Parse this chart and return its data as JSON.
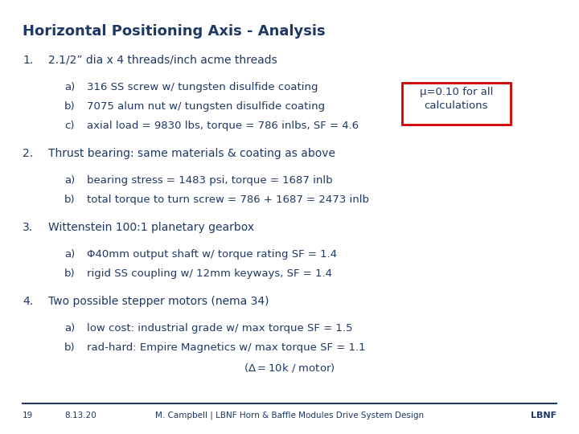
{
  "title": "Horizontal Positioning Axis - Analysis",
  "title_color": "#1F3864",
  "title_fontsize": 13,
  "background_color": "#FFFFFF",
  "body_color": "#1F3864",
  "body_fontsize": 10,
  "sub_fontsize": 9.5,
  "items": [
    {
      "num": "1.",
      "text": "2.1/2” dia x 4 threads/inch acme threads",
      "subitems": [
        {
          "label": "a)",
          "text": "316 SS screw w/ tungsten disulfide coating"
        },
        {
          "label": "b)",
          "text": "7075 alum nut w/ tungsten disulfide coating"
        },
        {
          "label": "c)",
          "text": "axial load = 9830 lbs, torque = 786 inlbs, SF = 4.6"
        }
      ]
    },
    {
      "num": "2.",
      "text": "Thrust bearing: same materials & coating as above",
      "subitems": [
        {
          "label": "a)",
          "text": "bearing stress = 1483 psi, torque = 1687 inlb"
        },
        {
          "label": "b)",
          "text": "total torque to turn screw = 786 + 1687 = 2473 inlb"
        }
      ]
    },
    {
      "num": "3.",
      "text": "Wittenstein 100:1 planetary gearbox",
      "subitems": [
        {
          "label": "a)",
          "text": "Φ40mm output shaft w/ torque rating SF = 1.4"
        },
        {
          "label": "b)",
          "text": "rigid SS coupling w/ 12mm keyways, SF = 1.4"
        }
      ]
    },
    {
      "num": "4.",
      "text": "Two possible stepper motors (nema 34)",
      "subitems": [
        {
          "label": "a)",
          "text": "low cost: industrial grade w/ max torque SF = 1.5"
        },
        {
          "label": "b)",
          "text": "rad-hard: Empire Magnetics w/ max torque SF = 1.1"
        },
        {
          "label": "",
          "text": "(Δ$ = $10k / motor)"
        }
      ]
    }
  ],
  "annotation_text": "μ=0.10 for all\ncalculations",
  "annotation_border_color": "#CC0000",
  "annotation_bg_color": "#FFFFFF",
  "footer_line_color": "#1F3864",
  "footer_page": "19",
  "footer_date": "8.13.20",
  "footer_center": "M. Campbell | LBNF Horn & Baffle Modules Drive System Design",
  "footer_right": "LBNF",
  "footer_fontsize": 7.5
}
